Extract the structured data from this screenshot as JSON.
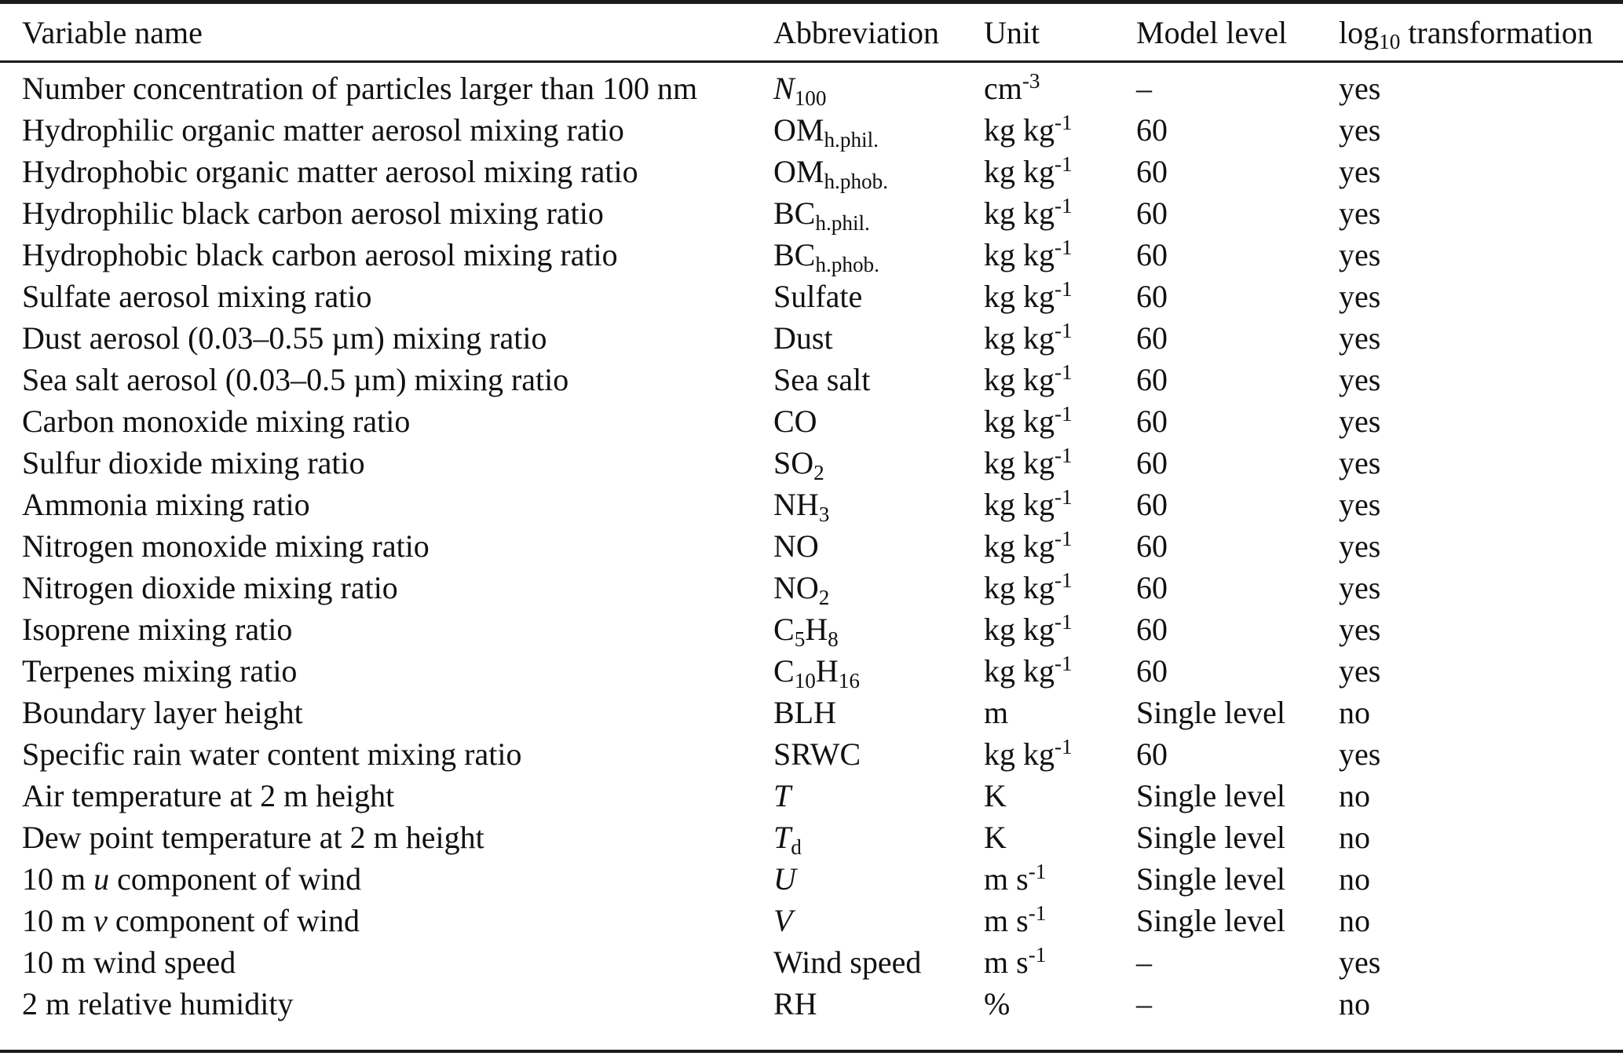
{
  "table": {
    "columns": [
      {
        "key": "variable",
        "label": "Variable name"
      },
      {
        "key": "abbreviation",
        "label": "Abbreviation"
      },
      {
        "key": "unit",
        "label": "Unit"
      },
      {
        "key": "model_level",
        "label": "Model level"
      },
      {
        "key": "log10",
        "label": "log_{10} transformation"
      }
    ],
    "rows": [
      {
        "variable": "Number concentration of particles larger than 100 nm",
        "abbreviation": "*N*_{100}",
        "unit": "cm^{-3}",
        "model_level": "–",
        "log10": "yes"
      },
      {
        "variable": "Hydrophilic organic matter aerosol mixing ratio",
        "abbreviation": "OM_{h.phil.}",
        "unit": "kg kg^{-1}",
        "model_level": "60",
        "log10": "yes"
      },
      {
        "variable": "Hydrophobic organic matter aerosol mixing ratio",
        "abbreviation": "OM_{h.phob.}",
        "unit": "kg kg^{-1}",
        "model_level": "60",
        "log10": "yes"
      },
      {
        "variable": "Hydrophilic black carbon aerosol mixing ratio",
        "abbreviation": "BC_{h.phil.}",
        "unit": "kg kg^{-1}",
        "model_level": "60",
        "log10": "yes"
      },
      {
        "variable": "Hydrophobic black carbon aerosol mixing ratio",
        "abbreviation": "BC_{h.phob.}",
        "unit": "kg kg^{-1}",
        "model_level": "60",
        "log10": "yes"
      },
      {
        "variable": "Sulfate aerosol mixing ratio",
        "abbreviation": "Sulfate",
        "unit": "kg kg^{-1}",
        "model_level": "60",
        "log10": "yes"
      },
      {
        "variable": "Dust aerosol (0.03–0.55 µm) mixing ratio",
        "abbreviation": "Dust",
        "unit": "kg kg^{-1}",
        "model_level": "60",
        "log10": "yes"
      },
      {
        "variable": "Sea salt aerosol (0.03–0.5 µm) mixing ratio",
        "abbreviation": "Sea salt",
        "unit": "kg kg^{-1}",
        "model_level": "60",
        "log10": "yes"
      },
      {
        "variable": "Carbon monoxide mixing ratio",
        "abbreviation": "CO",
        "unit": "kg kg^{-1}",
        "model_level": "60",
        "log10": "yes"
      },
      {
        "variable": "Sulfur dioxide mixing ratio",
        "abbreviation": "SO_{2}",
        "unit": "kg kg^{-1}",
        "model_level": "60",
        "log10": "yes"
      },
      {
        "variable": "Ammonia mixing ratio",
        "abbreviation": "NH_{3}",
        "unit": "kg kg^{-1}",
        "model_level": "60",
        "log10": "yes"
      },
      {
        "variable": "Nitrogen monoxide mixing ratio",
        "abbreviation": "NO",
        "unit": "kg kg^{-1}",
        "model_level": "60",
        "log10": "yes"
      },
      {
        "variable": "Nitrogen dioxide mixing ratio",
        "abbreviation": "NO_{2}",
        "unit": "kg kg^{-1}",
        "model_level": "60",
        "log10": "yes"
      },
      {
        "variable": "Isoprene mixing ratio",
        "abbreviation": "C_{5}H_{8}",
        "unit": "kg kg^{-1}",
        "model_level": "60",
        "log10": "yes"
      },
      {
        "variable": "Terpenes mixing ratio",
        "abbreviation": "C_{10}H_{16}",
        "unit": "kg kg^{-1}",
        "model_level": "60",
        "log10": "yes"
      },
      {
        "variable": "Boundary layer height",
        "abbreviation": "BLH",
        "unit": "m",
        "model_level": "Single level",
        "log10": "no"
      },
      {
        "variable": "Specific rain water content mixing ratio",
        "abbreviation": "SRWC",
        "unit": "kg kg^{-1}",
        "model_level": "60",
        "log10": "yes"
      },
      {
        "variable": "Air temperature at 2 m height",
        "abbreviation": "*T*",
        "unit": "K",
        "model_level": "Single level",
        "log10": "no"
      },
      {
        "variable": "Dew point temperature at 2 m height",
        "abbreviation": "*T*_{d}",
        "unit": "K",
        "model_level": "Single level",
        "log10": "no"
      },
      {
        "variable": "10 m *u* component of wind",
        "abbreviation": "*U*",
        "unit": "m s^{-1}",
        "model_level": "Single level",
        "log10": "no"
      },
      {
        "variable": "10 m *v* component of wind",
        "abbreviation": "*V*",
        "unit": "m s^{-1}",
        "model_level": "Single level",
        "log10": "no"
      },
      {
        "variable": "10 m wind speed",
        "abbreviation": "Wind speed",
        "unit": "m s^{-1}",
        "model_level": "–",
        "log10": "yes"
      },
      {
        "variable": "2 m relative humidity",
        "abbreviation": "RH",
        "unit": "%",
        "model_level": "–",
        "log10": "no"
      }
    ]
  }
}
